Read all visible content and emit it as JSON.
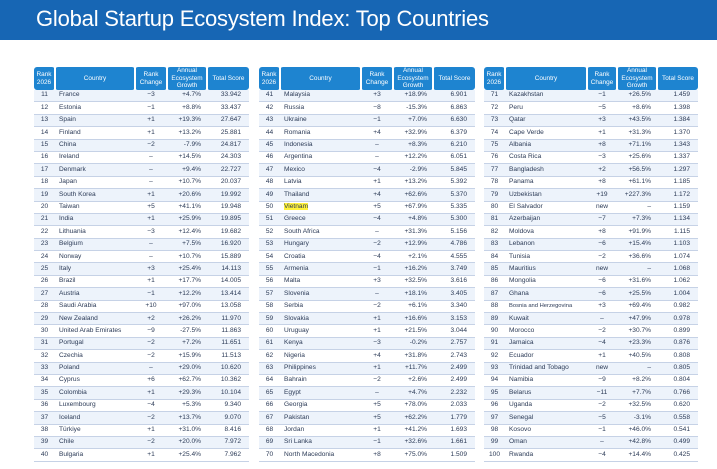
{
  "header": {
    "title": "Global Startup Ecosystem Index: Top Countries"
  },
  "columns": [
    "Rank 2026",
    "Country",
    "Rank Change",
    "Annual Ecosystem Growth",
    "Total Score"
  ],
  "tables": [
    {
      "rows": [
        [
          "11",
          "France",
          "−3",
          "+4.7%",
          "33.942"
        ],
        [
          "12",
          "Estonia",
          "−1",
          "+8.8%",
          "33.437"
        ],
        [
          "13",
          "Spain",
          "+1",
          "+19.3%",
          "27.647"
        ],
        [
          "14",
          "Finland",
          "+1",
          "+13.2%",
          "25.881"
        ],
        [
          "15",
          "China",
          "−2",
          "-7.9%",
          "24.817"
        ],
        [
          "16",
          "Ireland",
          "–",
          "+14.5%",
          "24.303"
        ],
        [
          "17",
          "Denmark",
          "–",
          "+9.4%",
          "22.727"
        ],
        [
          "18",
          "Japan",
          "–",
          "+10.7%",
          "20.037"
        ],
        [
          "19",
          "South Korea",
          "+1",
          "+20.6%",
          "19.992"
        ],
        [
          "20",
          "Taiwan",
          "+5",
          "+41.1%",
          "19.948"
        ],
        [
          "21",
          "India",
          "+1",
          "+25.9%",
          "19.895"
        ],
        [
          "22",
          "Lithuania",
          "−3",
          "+12.4%",
          "19.682"
        ],
        [
          "23",
          "Belgium",
          "–",
          "+7.5%",
          "16.920"
        ],
        [
          "24",
          "Norway",
          "–",
          "+10.7%",
          "15.889"
        ],
        [
          "25",
          "Italy",
          "+3",
          "+25.4%",
          "14.113"
        ],
        [
          "26",
          "Brazil",
          "+1",
          "+17.7%",
          "14.005"
        ],
        [
          "27",
          "Austria",
          "−1",
          "+12.2%",
          "13.414"
        ],
        [
          "28",
          "Saudi Arabia",
          "+10",
          "+97.0%",
          "13.058"
        ],
        [
          "29",
          "New Zealand",
          "+2",
          "+26.2%",
          "11.970"
        ],
        [
          "30",
          "United Arab Emirates",
          "−9",
          "-27.5%",
          "11.863"
        ],
        [
          "31",
          "Portugal",
          "−2",
          "+7.2%",
          "11.651"
        ],
        [
          "32",
          "Czechia",
          "−2",
          "+15.9%",
          "11.513"
        ],
        [
          "33",
          "Poland",
          "–",
          "+29.0%",
          "10.620"
        ],
        [
          "34",
          "Cyprus",
          "+6",
          "+62.7%",
          "10.362"
        ],
        [
          "35",
          "Colombia",
          "+1",
          "+29.3%",
          "10.104"
        ],
        [
          "36",
          "Luxembourg",
          "−4",
          "+5.3%",
          "9.340"
        ],
        [
          "37",
          "Iceland",
          "−2",
          "+13.7%",
          "9.070"
        ],
        [
          "38",
          "Türkiye",
          "+1",
          "+31.0%",
          "8.416"
        ],
        [
          "39",
          "Chile",
          "−2",
          "+20.0%",
          "7.972"
        ],
        [
          "40",
          "Bulgaria",
          "+1",
          "+25.4%",
          "7.962"
        ]
      ]
    },
    {
      "rows": [
        [
          "41",
          "Malaysia",
          "+3",
          "+18.9%",
          "6.901"
        ],
        [
          "42",
          "Russia",
          "−8",
          "-15.3%",
          "6.863"
        ],
        [
          "43",
          "Ukraine",
          "−1",
          "+7.0%",
          "6.630"
        ],
        [
          "44",
          "Romania",
          "+4",
          "+32.9%",
          "6.379"
        ],
        [
          "45",
          "Indonesia",
          "–",
          "+8.3%",
          "6.210"
        ],
        [
          "46",
          "Argentina",
          "–",
          "+12.2%",
          "6.051"
        ],
        [
          "47",
          "Mexico",
          "−4",
          "-2.9%",
          "5.845"
        ],
        [
          "48",
          "Latvia",
          "+1",
          "+13.2%",
          "5.392"
        ],
        [
          "49",
          "Thailand",
          "+4",
          "+62.6%",
          "5.370"
        ],
        [
          "50",
          "Vietnam",
          "+5",
          "+67.9%",
          "5.335"
        ],
        [
          "51",
          "Greece",
          "−4",
          "+4.8%",
          "5.300"
        ],
        [
          "52",
          "South Africa",
          "–",
          "+31.3%",
          "5.156"
        ],
        [
          "53",
          "Hungary",
          "−2",
          "+12.9%",
          "4.786"
        ],
        [
          "54",
          "Croatia",
          "−4",
          "+2.1%",
          "4.555"
        ],
        [
          "55",
          "Armenia",
          "−1",
          "+16.2%",
          "3.749"
        ],
        [
          "56",
          "Malta",
          "+3",
          "+32.5%",
          "3.616"
        ],
        [
          "57",
          "Slovenia",
          "–",
          "+18.1%",
          "3.405"
        ],
        [
          "58",
          "Serbia",
          "−2",
          "+6.1%",
          "3.340"
        ],
        [
          "59",
          "Slovakia",
          "+1",
          "+16.6%",
          "3.153"
        ],
        [
          "60",
          "Uruguay",
          "+1",
          "+21.5%",
          "3.044"
        ],
        [
          "61",
          "Kenya",
          "−3",
          "-0.2%",
          "2.757"
        ],
        [
          "62",
          "Nigeria",
          "+4",
          "+31.8%",
          "2.743"
        ],
        [
          "63",
          "Philippines",
          "+1",
          "+11.7%",
          "2.499"
        ],
        [
          "64",
          "Bahrain",
          "−2",
          "+2.6%",
          "2.499"
        ],
        [
          "65",
          "Egypt",
          "–",
          "+4.7%",
          "2.232"
        ],
        [
          "66",
          "Georgia",
          "+5",
          "+78.0%",
          "2.033"
        ],
        [
          "67",
          "Pakistan",
          "+5",
          "+62.2%",
          "1.779"
        ],
        [
          "68",
          "Jordan",
          "+1",
          "+41.2%",
          "1.693"
        ],
        [
          "69",
          "Sri Lanka",
          "−1",
          "+32.6%",
          "1.661"
        ],
        [
          "70",
          "North Macedonia",
          "+8",
          "+75.0%",
          "1.509"
        ]
      ]
    },
    {
      "rows": [
        [
          "71",
          "Kazakhstan",
          "−1",
          "+26.5%",
          "1.459"
        ],
        [
          "72",
          "Peru",
          "−5",
          "+8.6%",
          "1.398"
        ],
        [
          "73",
          "Qatar",
          "+3",
          "+43.5%",
          "1.384"
        ],
        [
          "74",
          "Cape Verde",
          "+1",
          "+31.3%",
          "1.370"
        ],
        [
          "75",
          "Albania",
          "+8",
          "+71.1%",
          "1.343"
        ],
        [
          "76",
          "Costa Rica",
          "−3",
          "+25.6%",
          "1.337"
        ],
        [
          "77",
          "Bangladesh",
          "+2",
          "+56.5%",
          "1.297"
        ],
        [
          "78",
          "Panama",
          "+8",
          "+61.1%",
          "1.185"
        ],
        [
          "79",
          "Uzbekistan",
          "+19",
          "+227.3%",
          "1.172"
        ],
        [
          "80",
          "El Salvador",
          "new",
          "–",
          "1.159"
        ],
        [
          "81",
          "Azerbaijan",
          "−7",
          "+7.3%",
          "1.134"
        ],
        [
          "82",
          "Moldova",
          "+8",
          "+91.9%",
          "1.115"
        ],
        [
          "83",
          "Lebanon",
          "−6",
          "+15.4%",
          "1.103"
        ],
        [
          "84",
          "Tunisia",
          "−2",
          "+36.6%",
          "1.074"
        ],
        [
          "85",
          "Mauritius",
          "new",
          "–",
          "1.068"
        ],
        [
          "86",
          "Mongolia",
          "−6",
          "+31.6%",
          "1.062"
        ],
        [
          "87",
          "Ghana",
          "−6",
          "+25.5%",
          "1.004"
        ],
        [
          "88",
          "Bosnia and Herzegovina",
          "+3",
          "+69.4%",
          "0.982"
        ],
        [
          "89",
          "Kuwait",
          "–",
          "+47.9%",
          "0.978"
        ],
        [
          "90",
          "Morocco",
          "−2",
          "+30.7%",
          "0.899"
        ],
        [
          "91",
          "Jamaica",
          "−4",
          "+23.3%",
          "0.876"
        ],
        [
          "92",
          "Ecuador",
          "+1",
          "+40.5%",
          "0.808"
        ],
        [
          "93",
          "Trinidad and Tobago",
          "new",
          "–",
          "0.805"
        ],
        [
          "94",
          "Namibia",
          "−9",
          "+8.2%",
          "0.804"
        ],
        [
          "95",
          "Belarus",
          "−11",
          "+7.7%",
          "0.766"
        ],
        [
          "96",
          "Uganda",
          "−2",
          "+32.5%",
          "0.620"
        ],
        [
          "97",
          "Senegal",
          "−5",
          "-3.1%",
          "0.558"
        ],
        [
          "98",
          "Kosovo",
          "−1",
          "+46.0%",
          "0.541"
        ],
        [
          "99",
          "Oman",
          "–",
          "+42.8%",
          "0.499"
        ],
        [
          "100",
          "Rwanda",
          "−4",
          "+14.4%",
          "0.425"
        ]
      ]
    }
  ],
  "highlight_country": "Vietnam",
  "colors": {
    "title_band": "#1766b4",
    "header_cell": "#1e84d0",
    "row_stripe": "#edf3fb",
    "highlight": "#fff23a"
  }
}
